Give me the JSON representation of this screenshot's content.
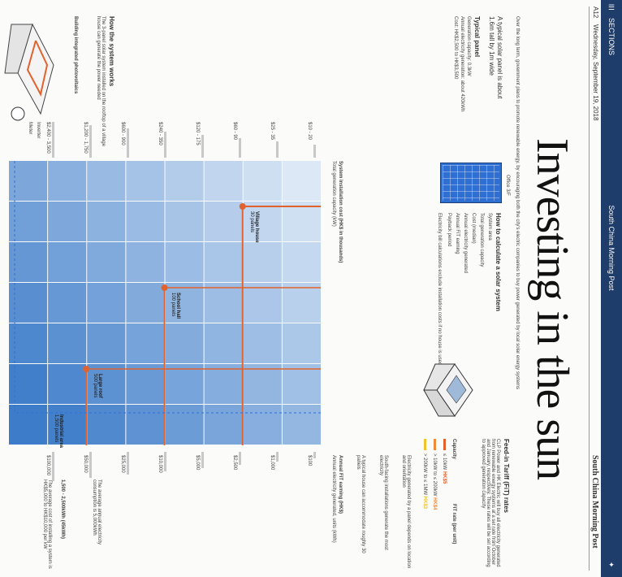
{
  "viewer": {
    "sections_label": "SECTIONS",
    "brand_small": "South China Morning Post",
    "menu_icon": "hamburger-icon",
    "share_icon": "twitter-icon",
    "bar_color": "#1f3d6b"
  },
  "masthead": {
    "page_label": "A12",
    "date": "Wednesday, September 19, 2018",
    "paper_name": "South China Morning Post"
  },
  "headline": "Investing in the sun",
  "standfirst": "Over the long term, government plans to promote renewable energy, by encouraging both the city's electric companies to buy power generated by local solar energy systems",
  "panel": {
    "line1": "A typical solar panel is about",
    "line2": "1.6m tall by 1m wide",
    "typical_heading": "Typical panel",
    "gen_capacity": "Generation capacity: 0.3kW",
    "annual_prod": "Annual electricity generation: about 420kWh",
    "cost": "Cost: HK$2,500 to HK$3,500"
  },
  "calc": {
    "heading": "How to calculate a solar system",
    "col_system_area": "System area",
    "col_total_capacity": "Total generation capacity",
    "col_cost": "Cost (median)",
    "col_annual_gen": "Annual electricity generated",
    "col_annual_fit": "Annual FiT earning",
    "col_payback": "Payback period",
    "note": "Electricity bill calculations exclude installation costs if no house is used for solar",
    "office_label": "Office 3/F"
  },
  "fit": {
    "heading": "Feed-in Tariff (FiT) rates",
    "body": "CLP Power and HK Electric will buy all electricity generated from renewable energy systems at a set rate from October and January, respectively. These rates will be set according to approved generation capacity",
    "cap_label": "Capacity",
    "rate_label": "FiT rate (per unit)",
    "tiers": [
      {
        "range": "≤ 10kW",
        "rate": "HK$5",
        "color": "#e2622d"
      },
      {
        "range": "> 10kW to ≤ 200kW",
        "rate": "HK$4",
        "color": "#f08a3c"
      },
      {
        "range": "> 200kW to ≤ 1MW",
        "rate": "HK$3",
        "color": "#f2c12e"
      }
    ]
  },
  "side_text": {
    "a": "Electricity generated by a panel depends on location and orientation",
    "b": "South-facing installations generate the most electricity",
    "c": "A typical house can accommodate roughly 30 panels"
  },
  "systems": {
    "heading": "How the system works",
    "body": "The 3-panel solar system installed on the rooftop of a village house can generate the power needed",
    "sub_heading": "Building integrated photovoltaics",
    "inverter_label": "Inverter",
    "meter_label": "Meter"
  },
  "axes": {
    "left_label": "System installation cost (HK$ in thousands)",
    "left_sub": "Total generation capacity (kW)",
    "right_label": "Annual FiT earning (HK$)",
    "right_sub": "Annual electricity generated, units (kWh)",
    "left_ticks": [
      "$10 - 20",
      "$25 - 35",
      "$60 - 90",
      "$120 - 175",
      "$240 - 350",
      "$600 - 900",
      "$1,200 - 1,750",
      "$2,400 - 3,500"
    ],
    "right_ticks": [
      "$100",
      "$1,000",
      "$2,500",
      "$5,000",
      "$10,000",
      "$25,000",
      "$50,000",
      "$100,000"
    ]
  },
  "examples": [
    {
      "label": "Village house",
      "area": "30 panels"
    },
    {
      "label": "School hall",
      "area": "100 panels"
    },
    {
      "label": "Large roof",
      "area": "500 panels"
    },
    {
      "label": "Industrial area",
      "area": "1,500 panels"
    }
  ],
  "bottom_notes": {
    "left": "The average annual electricity consumption is 5,000kWh",
    "mid": "1,500 - 2,500kWh (45kWh)",
    "right": "The average cost of installing a system is HK$5,000 to HK$10,000 per kW"
  },
  "colors": {
    "orange": "#e2622d",
    "blue_light": "#dce8f6",
    "blue_dark": "#3d7cc9",
    "yellow": "#f2c12e",
    "gray_bar": "#c8c8c8"
  }
}
